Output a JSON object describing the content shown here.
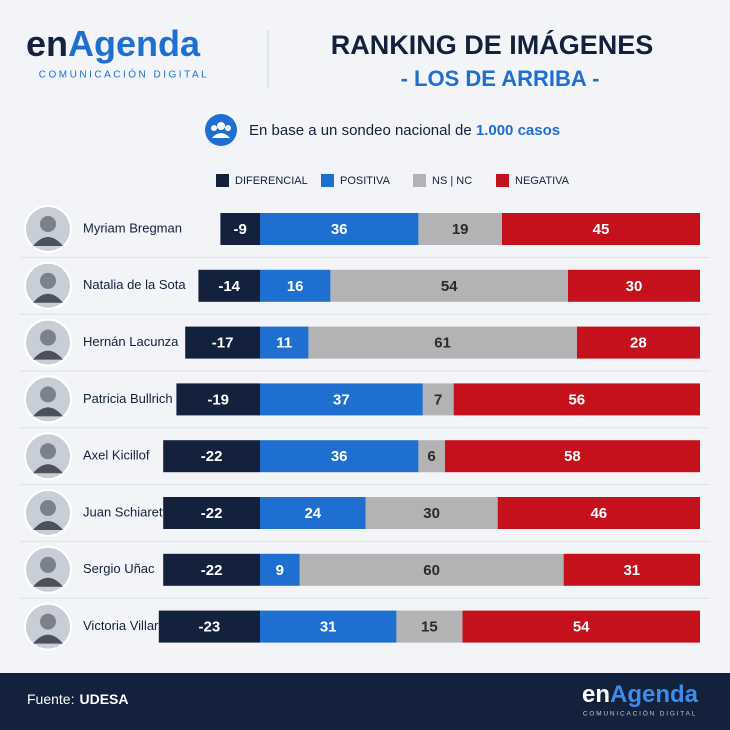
{
  "header": {
    "logo": [
      "en",
      "Agenda"
    ],
    "logo_tagline": "COMUNICACIÓN DIGITAL",
    "title": "RANKING DE IMÁGENES",
    "subtitle": "- LOS DE ARRIBA -",
    "note": [
      "En base a un sondeo nacional de ",
      "1.000 casos"
    ]
  },
  "chart_data": {
    "type": "bar",
    "orientation": "horizontal",
    "stacked": true,
    "categories": [
      "Myriam Bregman",
      "Natalia de la Sota",
      "Hernán Lacunza",
      "Patricia Bullrich",
      "Axel Kicillof",
      "Juan Schiaretti",
      "Sergio Uñac",
      "Victoria Villarruel"
    ],
    "series": [
      {
        "name": "DIFERENCIAL",
        "color": "#13213d",
        "values": [
          -9,
          -14,
          -17,
          -19,
          -22,
          -22,
          -22,
          -23
        ]
      },
      {
        "name": "POSITIVA",
        "color": "#1f6fd0",
        "values": [
          36,
          16,
          11,
          37,
          36,
          24,
          9,
          31
        ]
      },
      {
        "name": "NS | NC",
        "color": "#b3b3b3",
        "values": [
          19,
          54,
          61,
          7,
          6,
          30,
          60,
          15
        ]
      },
      {
        "name": "NEGATIVA",
        "color": "#c4111b",
        "values": [
          45,
          30,
          28,
          56,
          58,
          46,
          31,
          54
        ]
      }
    ]
  },
  "footer": {
    "source_label": "Fuente:",
    "source": "UDESA"
  }
}
